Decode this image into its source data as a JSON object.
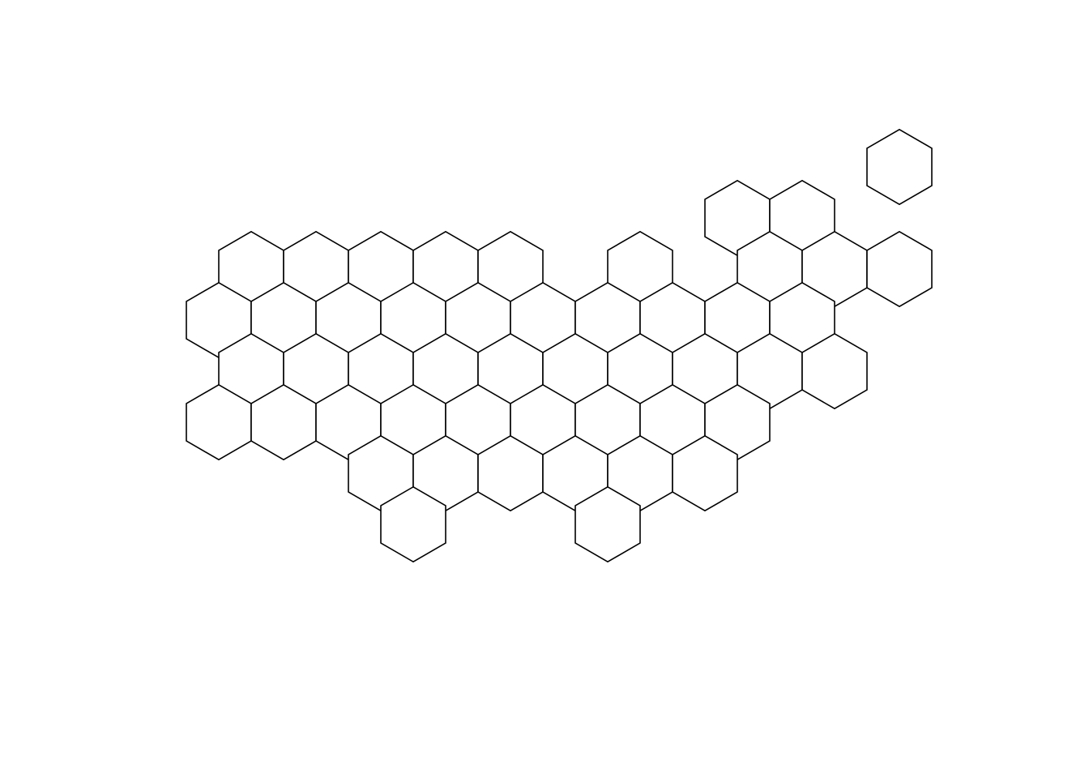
{
  "map": {
    "type": "hexbin-map",
    "fill_color": "#ffffff",
    "stroke_color": "#000000",
    "rows": [
      {
        "row": 0,
        "cols": [
          10
        ]
      },
      {
        "row": 1,
        "cols": [
          8,
          9
        ]
      },
      {
        "row": 2,
        "cols": [
          0,
          1,
          2,
          3,
          4,
          6,
          8,
          9,
          10
        ]
      },
      {
        "row": 3,
        "cols": [
          0,
          1,
          2,
          3,
          4,
          5,
          6,
          7,
          8,
          9
        ]
      },
      {
        "row": 4,
        "cols": [
          0,
          1,
          2,
          3,
          4,
          5,
          6,
          7,
          8,
          9
        ]
      },
      {
        "row": 5,
        "cols": [
          0,
          1,
          2,
          3,
          4,
          5,
          6,
          7,
          8
        ]
      },
      {
        "row": 6,
        "cols": [
          2,
          3,
          4,
          5,
          6,
          7
        ]
      },
      {
        "row": 7,
        "cols": [
          3,
          6
        ]
      }
    ]
  }
}
